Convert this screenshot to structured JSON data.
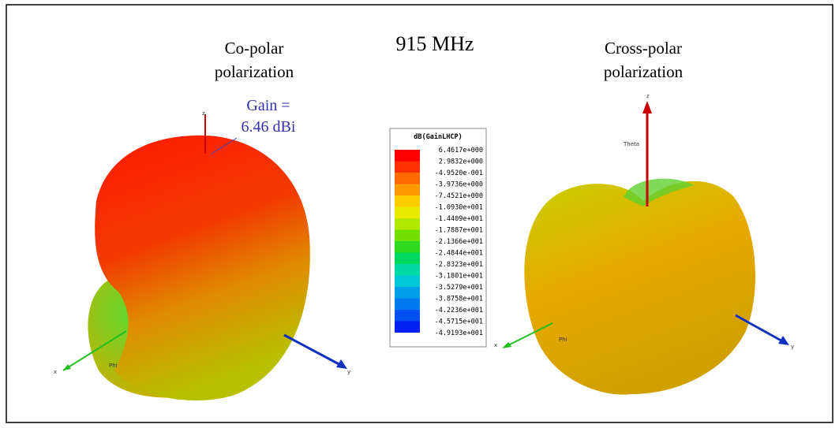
{
  "title": "915 MHz",
  "left": {
    "label_lines": [
      "Co-polar",
      "polarization"
    ],
    "gain_lines": [
      "Gain =",
      "6.46 dBi"
    ],
    "axes": {
      "z": "z",
      "x": "x",
      "y": "y",
      "phi": "Phi"
    }
  },
  "right": {
    "label_lines": [
      "Cross-polar",
      "polarization"
    ],
    "axes": {
      "z": "z",
      "x": "x",
      "y": "y",
      "theta": "Theta",
      "phi": "Phi"
    }
  },
  "legend": {
    "title": "dB(GainLHCP)",
    "labels": [
      "6.4617e+000",
      "2.9832e+000",
      "-4.9520e-001",
      "-3.9736e+000",
      "-7.4521e+000",
      "-1.0930e+001",
      "-1.4409e+001",
      "-1.7887e+001",
      "-2.1366e+001",
      "-2.4844e+001",
      "-2.8323e+001",
      "-3.1801e+001",
      "-3.5279e+001",
      "-3.8758e+001",
      "-4.2236e+001",
      "-4.5715e+001",
      "-4.9193e+001"
    ],
    "colors": [
      "#ff0000",
      "#ff3000",
      "#ff6a00",
      "#ff9a00",
      "#ffcc00",
      "#e8e800",
      "#b0e800",
      "#70e000",
      "#30d820",
      "#00d860",
      "#00d8a8",
      "#00c8d8",
      "#00a0e8",
      "#0078f0",
      "#0050f0",
      "#0020f0"
    ]
  }
}
